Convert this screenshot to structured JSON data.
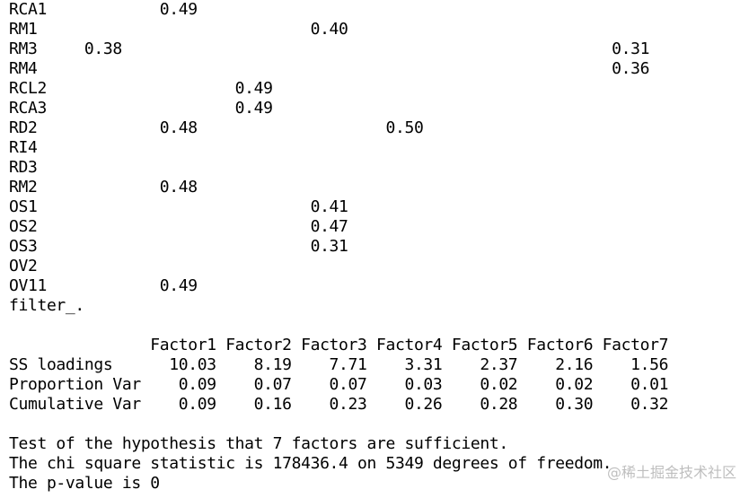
{
  "console_lines": [
    "RCA1            0.49",
    "RM1                             0.40",
    "RM3     0.38                                                    0.31",
    "RM4                                                             0.36",
    "RCL2                    0.49",
    "RCA3                    0.49",
    "RD2             0.48                    0.50",
    "RI4",
    "RD3",
    "RM2             0.48",
    "OS1                             0.41",
    "OS2                             0.47",
    "OS3                             0.31",
    "OV2",
    "OV11            0.49",
    "filter_.",
    "",
    "               Factor1 Factor2 Factor3 Factor4 Factor5 Factor6 Factor7",
    "SS loadings      10.03    8.19    7.71    3.31    2.37    2.16    1.56",
    "Proportion Var    0.09    0.07    0.07    0.03    0.02    0.02    0.01",
    "Cumulative Var    0.09    0.16    0.23    0.26    0.28    0.30    0.32",
    "",
    "Test of the hypothesis that 7 factors are sufficient.",
    "The chi square statistic is 178436.4 on 5349 degrees of freedom.",
    "The p-value is 0"
  ],
  "watermark": "@稀土掘金技术社区"
}
